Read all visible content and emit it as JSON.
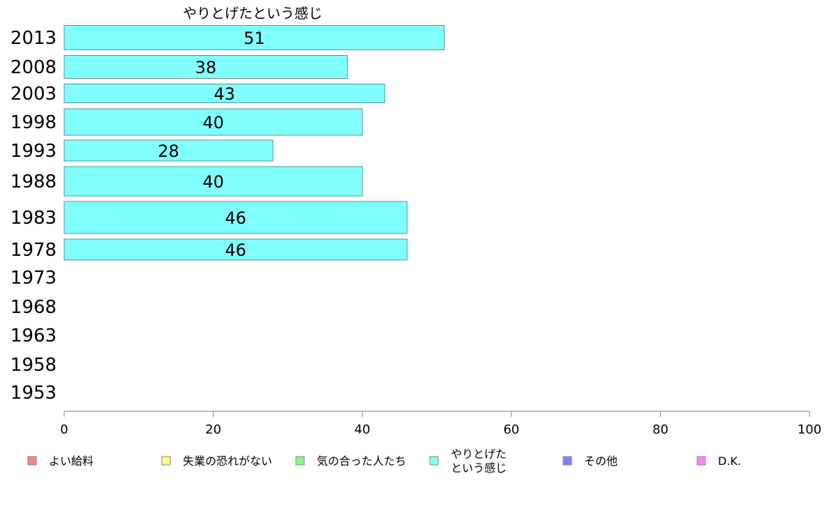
{
  "chart_data": {
    "type": "bar",
    "orientation": "horizontal",
    "title": "やりとげたという感じ",
    "categories": [
      "2013",
      "2008",
      "2003",
      "1998",
      "1993",
      "1988",
      "1983",
      "1978",
      "1973",
      "1968",
      "1963",
      "1958",
      "1953"
    ],
    "series": [
      {
        "name": "やりとげたという感じ",
        "color": "#80ffff",
        "values": [
          51,
          38,
          43,
          40,
          28,
          40,
          46,
          46,
          null,
          null,
          null,
          null,
          null
        ]
      }
    ],
    "xlim": [
      0,
      100
    ],
    "xticks": [
      0,
      20,
      40,
      60,
      80,
      100
    ],
    "grid": false,
    "legend": {
      "placement": "bottom",
      "items": [
        {
          "lines": [
            "よい給料"
          ],
          "color": "#ff8080"
        },
        {
          "lines": [
            "失業の恐れがない"
          ],
          "color": "#ffff80"
        },
        {
          "lines": [
            "気の合った人たち"
          ],
          "color": "#80ff80"
        },
        {
          "lines": [
            "やりとげた",
            "という感じ"
          ],
          "color": "#80ffff"
        },
        {
          "lines": [
            "その他"
          ],
          "color": "#8080ff"
        },
        {
          "lines": [
            "D.K."
          ],
          "color": "#ff80ff"
        }
      ]
    }
  }
}
